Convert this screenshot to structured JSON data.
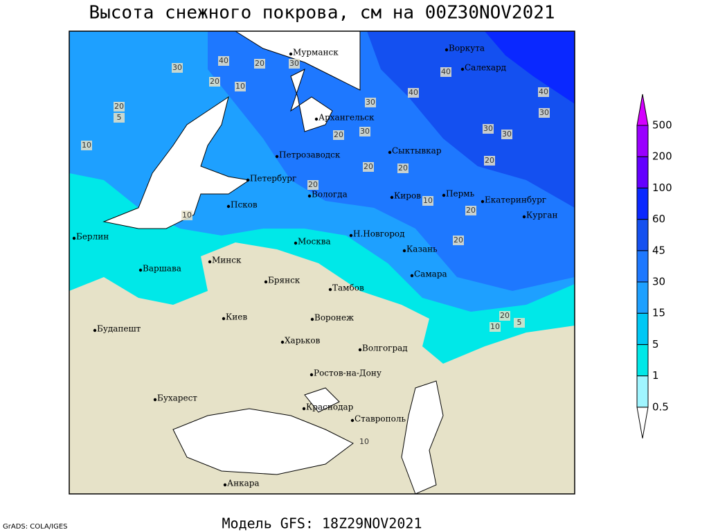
{
  "header": {
    "title": "Высота снежного покрова, см на 00Z30NOV2021"
  },
  "map": {
    "cities": [
      "Мурманск",
      "Воркута",
      "Салехард",
      "Архангельск",
      "Сыктывкар",
      "Петрозаводск",
      "Петербург",
      "Вологда",
      "Киров",
      "Пермь",
      "Екатеринбург",
      "Курган",
      "Псков",
      "Берлин",
      "Н.Новгород",
      "Москва",
      "Казань",
      "Минск",
      "Варшава",
      "Брянск",
      "Тамбов",
      "Самара",
      "Киев",
      "Воронеж",
      "Будапешт",
      "Харьков",
      "Волгоград",
      "Ростов-на-Дону",
      "Бухарест",
      "Краснодар",
      "Ставрополь",
      "Анкара"
    ],
    "contour_labels": [
      40,
      20,
      30,
      10,
      20,
      20,
      30,
      40,
      40,
      30,
      30,
      40,
      30,
      20,
      20,
      10,
      20,
      20,
      20,
      30,
      30,
      5,
      10,
      20,
      20,
      10,
      5,
      10,
      20,
      10
    ]
  },
  "legend": {
    "levels": [
      0.5,
      1,
      5,
      15,
      30,
      45,
      60,
      100,
      200,
      500
    ],
    "colors": [
      "#ffffff",
      "#a0f5ff",
      "#00e8e8",
      "#00c8f5",
      "#1ea0ff",
      "#1e78ff",
      "#1450f0",
      "#0a28ff",
      "#6400ff",
      "#9a00ff",
      "#d400ff"
    ]
  },
  "footer": {
    "credit": "GrADS: COLA/IGES",
    "model": "Модель GFS: 18Z29NOV2021"
  }
}
